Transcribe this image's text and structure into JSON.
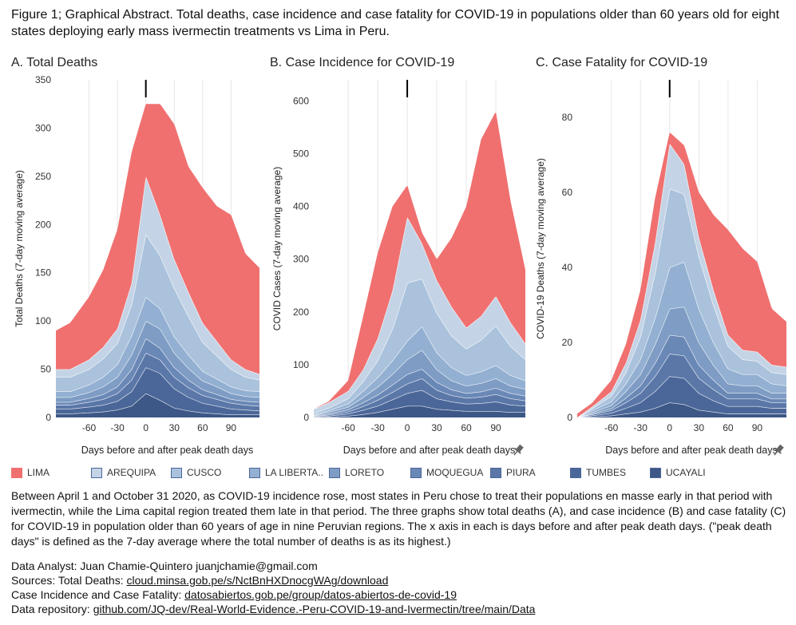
{
  "figure_title": "Figure 1; Graphical Abstract. Total deaths, case incidence and case fatality for COVID-19 in populations older than 60 years old for eight states deploying early mass ivermectin treatments vs Lima in Peru.",
  "legend": [
    {
      "name": "LIMA",
      "color": "#f07070"
    },
    {
      "name": "AREQUIPA",
      "color": "#c4d4e6"
    },
    {
      "name": "CUSCO",
      "color": "#aac2dc"
    },
    {
      "name": "LA LIBERTA..",
      "color": "#93b0d2"
    },
    {
      "name": "LORETO",
      "color": "#7e9cc4"
    },
    {
      "name": "MOQUEGUA",
      "color": "#6a88b6"
    },
    {
      "name": "PIURA",
      "color": "#5a77a8"
    },
    {
      "name": "TUMBES",
      "color": "#4b6799"
    },
    {
      "name": "UCAYALI",
      "color": "#3d5787"
    }
  ],
  "description": "Between April 1 and October 31 2020, as COVID-19 incidence rose, most states in Peru chose to treat their populations en masse early in that period with ivermectin, while the Lima capital region treated them late in that period. The three graphs show total deaths (A), and case incidence (B) and case fatality (C) for COVID-19 in population older than 60 years of age in nine Peruvian regions. The x axis in each is days before and after peak death days. (\"peak death days\" is defined as the 7-day average where the total number of deaths is as its highest.)",
  "credits": {
    "analyst": "Data Analyst: Juan Chamie-Quintero juanjchamie@gmail.com",
    "sources_label": "Sources: Total Deaths: ",
    "sources_link": "cloud.minsa.gob.pe/s/NctBnHXDnocgWAg/download",
    "case_label": "Case Incidence and Case Fatality: ",
    "case_link": "datosabiertos.gob.pe/group/datos-abiertos-de-covid-19",
    "repo_label": "Data repository: ",
    "repo_link": "github.com/JQ-dev/Real-World-Evidence.-Peru-COVID-19-and-Ivermectin/tree/main/Data"
  },
  "chart_data": [
    {
      "type": "area",
      "stacked": true,
      "title": "A. Total Deaths",
      "xlabel": "Days before and after peak death days",
      "ylabel": "Total Deaths (7-day moving average)",
      "xlim": [
        -95,
        120
      ],
      "ylim": [
        0,
        350
      ],
      "xticks": [
        "-60",
        "-30",
        "0",
        "30",
        "60",
        "90"
      ],
      "yticks": [
        "0",
        "50",
        "100",
        "150",
        "200",
        "250",
        "300",
        "350"
      ],
      "x": [
        -95,
        -80,
        -60,
        -45,
        -30,
        -15,
        0,
        15,
        30,
        45,
        60,
        75,
        90,
        105,
        120
      ],
      "series": [
        {
          "name": "UCAYALI",
          "values": [
            4,
            4,
            5,
            6,
            8,
            12,
            25,
            18,
            10,
            7,
            5,
            4,
            3,
            3,
            3
          ]
        },
        {
          "name": "TUMBES",
          "values": [
            5,
            5,
            6,
            7,
            9,
            15,
            27,
            28,
            20,
            14,
            10,
            8,
            6,
            5,
            4
          ]
        },
        {
          "name": "PIURA",
          "values": [
            4,
            4,
            5,
            6,
            8,
            12,
            15,
            14,
            12,
            10,
            8,
            7,
            6,
            5,
            5
          ]
        },
        {
          "name": "MOQUEGUA",
          "values": [
            3,
            3,
            4,
            5,
            7,
            11,
            15,
            12,
            10,
            8,
            6,
            5,
            4,
            4,
            4
          ]
        },
        {
          "name": "LORETO",
          "values": [
            5,
            5,
            6,
            8,
            10,
            15,
            18,
            20,
            15,
            12,
            9,
            8,
            6,
            5,
            5
          ]
        },
        {
          "name": "LA LIBERTAD",
          "values": [
            6,
            6,
            8,
            10,
            13,
            20,
            25,
            21,
            17,
            14,
            10,
            8,
            7,
            6,
            6
          ]
        },
        {
          "name": "CUSCO",
          "values": [
            15,
            15,
            16,
            19,
            22,
            32,
            65,
            55,
            50,
            40,
            30,
            24,
            18,
            14,
            12
          ]
        },
        {
          "name": "AREQUIPA",
          "values": [
            8,
            8,
            10,
            12,
            15,
            22,
            60,
            42,
            30,
            25,
            20,
            15,
            10,
            8,
            6
          ]
        },
        {
          "name": "LIMA",
          "values": [
            40,
            48,
            65,
            80,
            103,
            136,
            75,
            115,
            140,
            130,
            140,
            140,
            150,
            120,
            110
          ]
        }
      ]
    },
    {
      "type": "area",
      "stacked": true,
      "title": "B. Case Incidence for COVID-19",
      "xlabel": "Days before and after peak death days",
      "ylabel": "COVID Cases (7-day moving average)",
      "xlim": [
        -95,
        120
      ],
      "ylim": [
        0,
        640
      ],
      "xticks": [
        "-60",
        "-30",
        "0",
        "30",
        "60",
        "90"
      ],
      "yticks": [
        "0",
        "100",
        "200",
        "300",
        "400",
        "500",
        "600"
      ],
      "x": [
        -95,
        -80,
        -60,
        -45,
        -30,
        -15,
        0,
        15,
        30,
        45,
        60,
        75,
        90,
        105,
        120
      ],
      "series": [
        {
          "name": "UCAYALI",
          "values": [
            0,
            1,
            3,
            6,
            10,
            16,
            22,
            22,
            16,
            14,
            12,
            12,
            12,
            10,
            10
          ]
        },
        {
          "name": "TUMBES",
          "values": [
            1,
            2,
            4,
            8,
            12,
            18,
            24,
            30,
            20,
            16,
            14,
            15,
            18,
            14,
            12
          ]
        },
        {
          "name": "PIURA",
          "values": [
            1,
            2,
            4,
            7,
            11,
            14,
            18,
            22,
            16,
            12,
            11,
            12,
            14,
            12,
            10
          ]
        },
        {
          "name": "MOQUEGUA",
          "values": [
            1,
            2,
            4,
            7,
            10,
            14,
            18,
            18,
            15,
            11,
            9,
            10,
            12,
            10,
            9
          ]
        },
        {
          "name": "LORETO",
          "values": [
            1,
            3,
            5,
            10,
            15,
            20,
            28,
            36,
            24,
            17,
            14,
            16,
            18,
            14,
            13
          ]
        },
        {
          "name": "LA LIBERTAD",
          "values": [
            1,
            3,
            6,
            12,
            18,
            26,
            35,
            45,
            32,
            25,
            20,
            22,
            25,
            20,
            16
          ]
        },
        {
          "name": "CUSCO",
          "values": [
            3,
            5,
            10,
            18,
            32,
            60,
            110,
            90,
            75,
            60,
            50,
            60,
            75,
            55,
            40
          ]
        },
        {
          "name": "AREQUIPA",
          "values": [
            8,
            10,
            14,
            22,
            42,
            72,
            125,
            67,
            62,
            55,
            40,
            45,
            56,
            45,
            30
          ]
        },
        {
          "name": "LIMA",
          "values": [
            0,
            2,
            20,
            100,
            162,
            160,
            60,
            20,
            40,
            130,
            230,
            335,
            350,
            230,
            140
          ]
        }
      ]
    },
    {
      "type": "area",
      "stacked": true,
      "title": "C. Case Fatality for COVID-19",
      "xlabel": "Days before and after peak death days",
      "ylabel": "COVID-19 Deaths (7-day moving average)",
      "xlim": [
        -95,
        120
      ],
      "ylim": [
        0,
        90
      ],
      "xticks": [
        "-60",
        "-30",
        "0",
        "30",
        "60",
        "90"
      ],
      "yticks": [
        "0",
        "20",
        "40",
        "60",
        "80"
      ],
      "x": [
        -95,
        -80,
        -60,
        -45,
        -30,
        -15,
        0,
        15,
        30,
        45,
        60,
        75,
        90,
        105,
        120
      ],
      "series": [
        {
          "name": "UCAYALI",
          "values": [
            0,
            0.2,
            0.5,
            1,
            1.5,
            2.5,
            4,
            3.5,
            2,
            1.5,
            1,
            1,
            1,
            1,
            1
          ]
        },
        {
          "name": "TUMBES",
          "values": [
            0,
            0.3,
            0.7,
            1.5,
            2.5,
            4.5,
            7,
            7,
            4.5,
            3,
            2,
            2,
            2,
            1.5,
            1.5
          ]
        },
        {
          "name": "PIURA",
          "values": [
            0,
            0.3,
            0.7,
            1.5,
            2.5,
            4,
            6,
            6,
            4,
            3,
            2,
            2,
            2,
            1.5,
            1.5
          ]
        },
        {
          "name": "MOQUEGUA",
          "values": [
            0,
            0.2,
            0.5,
            1.2,
            2,
            3.5,
            5,
            5,
            3.5,
            2.5,
            1.5,
            1.5,
            1.5,
            1,
            1
          ]
        },
        {
          "name": "LORETO",
          "values": [
            0,
            0.3,
            0.8,
            1.8,
            3,
            5,
            7,
            8,
            6,
            4,
            2.5,
            2,
            2,
            1.5,
            1.5
          ]
        },
        {
          "name": "LA LIBERTAD",
          "values": [
            0,
            0.5,
            1,
            2,
            4,
            7,
            11,
            12,
            9,
            6,
            4,
            3,
            3,
            2.5,
            2
          ]
        },
        {
          "name": "CUSCO",
          "values": [
            0,
            0.5,
            1.5,
            3,
            6,
            12,
            21,
            18,
            14,
            10,
            6,
            4,
            3.5,
            3,
            3
          ]
        },
        {
          "name": "AREQUIPA",
          "values": [
            0,
            0.5,
            1.2,
            2.5,
            4.5,
            8,
            12,
            8,
            5,
            4,
            3,
            2.5,
            2.5,
            2,
            2
          ]
        },
        {
          "name": "LIMA",
          "values": [
            1,
            1,
            3,
            5,
            8,
            12,
            3,
            5,
            12,
            20,
            28,
            27,
            24,
            15,
            12
          ]
        }
      ]
    }
  ]
}
